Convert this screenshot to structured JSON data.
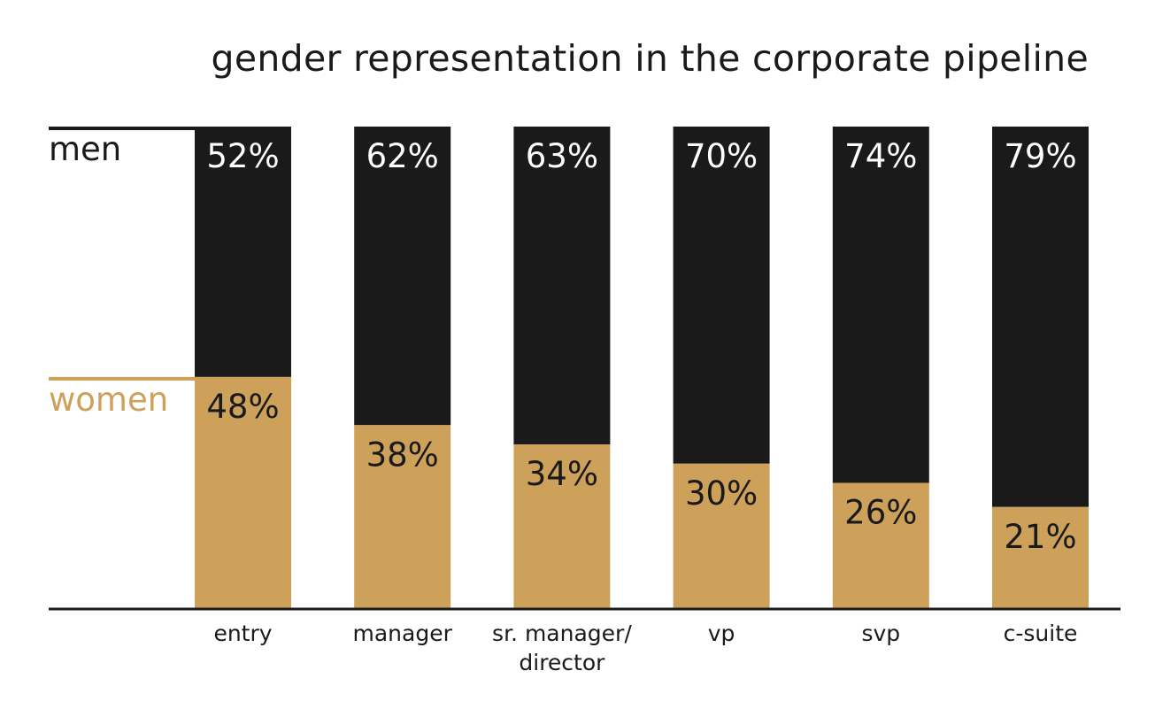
{
  "chart_data": {
    "type": "bar",
    "stacked": true,
    "title": "gender representation in the corporate pipeline",
    "categories": [
      [
        "entry"
      ],
      [
        "manager"
      ],
      [
        "sr. manager/",
        "director"
      ],
      [
        "vp"
      ],
      [
        "svp"
      ],
      [
        "c-suite"
      ]
    ],
    "series": [
      {
        "name": "women",
        "values": [
          48,
          38,
          34,
          30,
          26,
          21
        ],
        "labels": [
          "48%",
          "38%",
          "34%",
          "30%",
          "26%",
          "21%"
        ],
        "color": "#cda15a",
        "label_color": "#1a1a1a"
      },
      {
        "name": "men",
        "values": [
          52,
          62,
          63,
          70,
          74,
          79
        ],
        "labels": [
          "52%",
          "62%",
          "63%",
          "70%",
          "74%",
          "79%"
        ],
        "color": "#1a1a1a",
        "label_color": "#ffffff"
      }
    ],
    "ylim": [
      0,
      100
    ],
    "legend": "left, aligned with first bar",
    "grid": false
  }
}
